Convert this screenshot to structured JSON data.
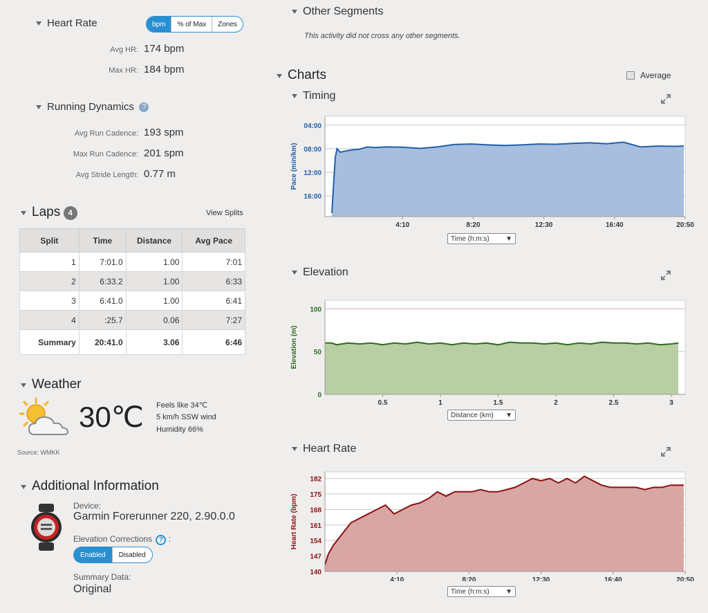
{
  "heart_rate": {
    "title": "Heart Rate",
    "toggle": [
      "bpm",
      "% of Max",
      "Zones"
    ],
    "avg_label": "Avg HR:",
    "avg_value": "174 bpm",
    "max_label": "Max HR:",
    "max_value": "184 bpm"
  },
  "running_dynamics": {
    "title": "Running Dynamics",
    "rows": [
      {
        "label": "Avg Run Cadence:",
        "value": "193 spm"
      },
      {
        "label": "Max Run Cadence:",
        "value": "201 spm"
      },
      {
        "label": "Avg Stride Length:",
        "value": "0.77 m"
      }
    ]
  },
  "laps": {
    "title": "Laps",
    "count": "4",
    "view_splits": "View Splits",
    "headers": [
      "Split",
      "Time",
      "Distance",
      "Avg Pace"
    ],
    "rows": [
      [
        "1",
        "7:01.0",
        "1.00",
        "7:01"
      ],
      [
        "2",
        "6:33.2",
        "1.00",
        "6:33"
      ],
      [
        "3",
        "6:41.0",
        "1.00",
        "6:41"
      ],
      [
        "4",
        ":25.7",
        "0.06",
        "7:27"
      ]
    ],
    "summary": [
      "Summary",
      "20:41.0",
      "3.06",
      "6:46"
    ]
  },
  "weather": {
    "title": "Weather",
    "temp": "30℃",
    "feels": "Feels like 34℃",
    "wind": "5 km/h SSW wind",
    "humidity": "Humidity 66%",
    "source": "Source: WMKK",
    "icon": "partly-cloudy-icon"
  },
  "additional": {
    "title": "Additional Information",
    "device_label": "Device:",
    "device_value": "Garmin Forerunner 220, 2.90.0.0",
    "elev_label": "Elevation Corrections",
    "elev_colon": ":",
    "elev_toggle": [
      "Enabled",
      "Disabled"
    ],
    "summary_label": "Summary Data:",
    "summary_value": "Original"
  },
  "other_segments": {
    "title": "Other Segments",
    "text": "This activity did not cross any other segments."
  },
  "charts_title": "Charts",
  "average_label": "Average",
  "chart_data": [
    {
      "title": "Timing",
      "type": "area",
      "color": "#1f5fa8",
      "fill": "#a8bedf",
      "ylabel": "Pace (min/km)",
      "yticks": [
        "04:00",
        "08:00",
        "12:00",
        "16:00"
      ],
      "xticks": [
        "4:10",
        "8:20",
        "12:30",
        "16:40",
        "20:50"
      ],
      "xlabel": "Time (h:m:s)",
      "x_minutes": [
        0,
        0.1,
        0.2,
        0.3,
        0.5,
        0.8,
        1.2,
        1.6,
        2.1,
        2.5,
        3.2,
        4.2,
        5.2,
        6.2,
        7.2,
        8.2,
        9.2,
        10.2,
        11.2,
        12.2,
        13.2,
        14.2,
        15.2,
        16.2,
        17.2,
        18.2,
        19.2,
        20.2,
        20.75
      ],
      "y_pace_minutes": [
        18.9,
        14.0,
        9.5,
        8.0,
        8.6,
        8.4,
        8.2,
        8.1,
        7.7,
        7.8,
        7.7,
        7.75,
        7.95,
        7.7,
        7.3,
        7.2,
        7.35,
        7.45,
        7.35,
        7.2,
        7.25,
        7.1,
        7.0,
        7.15,
        6.9,
        7.7,
        7.55,
        7.6,
        7.55
      ],
      "ylim": [
        2.5,
        19.5
      ]
    },
    {
      "title": "Elevation",
      "type": "area",
      "color": "#2e6b1f",
      "fill": "#b7cfa3",
      "ylabel": "Elevation (m)",
      "yticks": [
        "100",
        "50",
        "0"
      ],
      "xticks": [
        "0.5",
        "1",
        "1.5",
        "2",
        "2.5",
        "3"
      ],
      "xlabel": "Distance (km)",
      "x": [
        0,
        0.06,
        0.1,
        0.2,
        0.3,
        0.4,
        0.5,
        0.6,
        0.7,
        0.8,
        0.9,
        1.0,
        1.1,
        1.2,
        1.3,
        1.4,
        1.5,
        1.6,
        1.7,
        1.8,
        1.9,
        2.0,
        2.1,
        2.2,
        2.3,
        2.4,
        2.5,
        2.6,
        2.7,
        2.8,
        2.9,
        3.0,
        3.06
      ],
      "y": [
        60,
        60,
        58,
        60,
        59,
        60,
        58,
        60,
        59,
        61,
        59,
        60,
        58,
        60,
        59,
        60,
        58,
        61,
        60,
        60,
        59,
        60,
        58,
        60,
        59,
        61,
        60,
        60,
        59,
        60,
        58,
        59,
        60
      ],
      "ylim": [
        0,
        110
      ]
    },
    {
      "title": "Heart Rate",
      "type": "area",
      "color": "#8b1111",
      "fill": "#d9a7a3",
      "ylabel": "Heart Rate (bpm)",
      "yticks": [
        "182",
        "175",
        "168",
        "161",
        "154",
        "147",
        "140"
      ],
      "xticks": [
        "4:10",
        "8:20",
        "12:30",
        "16:40",
        "20:50"
      ],
      "xlabel": "Time (h:m:s)",
      "x": [
        0,
        0.2,
        0.5,
        1.0,
        1.5,
        2.0,
        2.5,
        3.0,
        3.5,
        4.0,
        4.5,
        5.0,
        5.5,
        6.0,
        6.5,
        7.0,
        7.5,
        8.0,
        8.5,
        9.0,
        9.5,
        10.0,
        10.5,
        11.0,
        11.5,
        12.0,
        12.5,
        13.0,
        13.5,
        14.0,
        14.5,
        15.0,
        15.5,
        16.0,
        16.5,
        17.0,
        17.5,
        18.0,
        18.5,
        19.0,
        19.5,
        20.0,
        20.5,
        20.75
      ],
      "y": [
        143,
        148,
        152,
        157,
        162,
        164,
        166,
        168,
        170,
        166,
        168,
        170,
        171,
        173,
        176,
        174,
        176,
        176,
        176,
        177,
        176,
        176,
        177,
        178,
        180,
        182,
        181,
        182,
        180,
        182,
        180,
        183,
        181,
        179,
        178,
        178,
        178,
        178,
        177,
        178,
        178,
        179,
        179,
        179
      ],
      "ylim": [
        140,
        185
      ]
    }
  ]
}
